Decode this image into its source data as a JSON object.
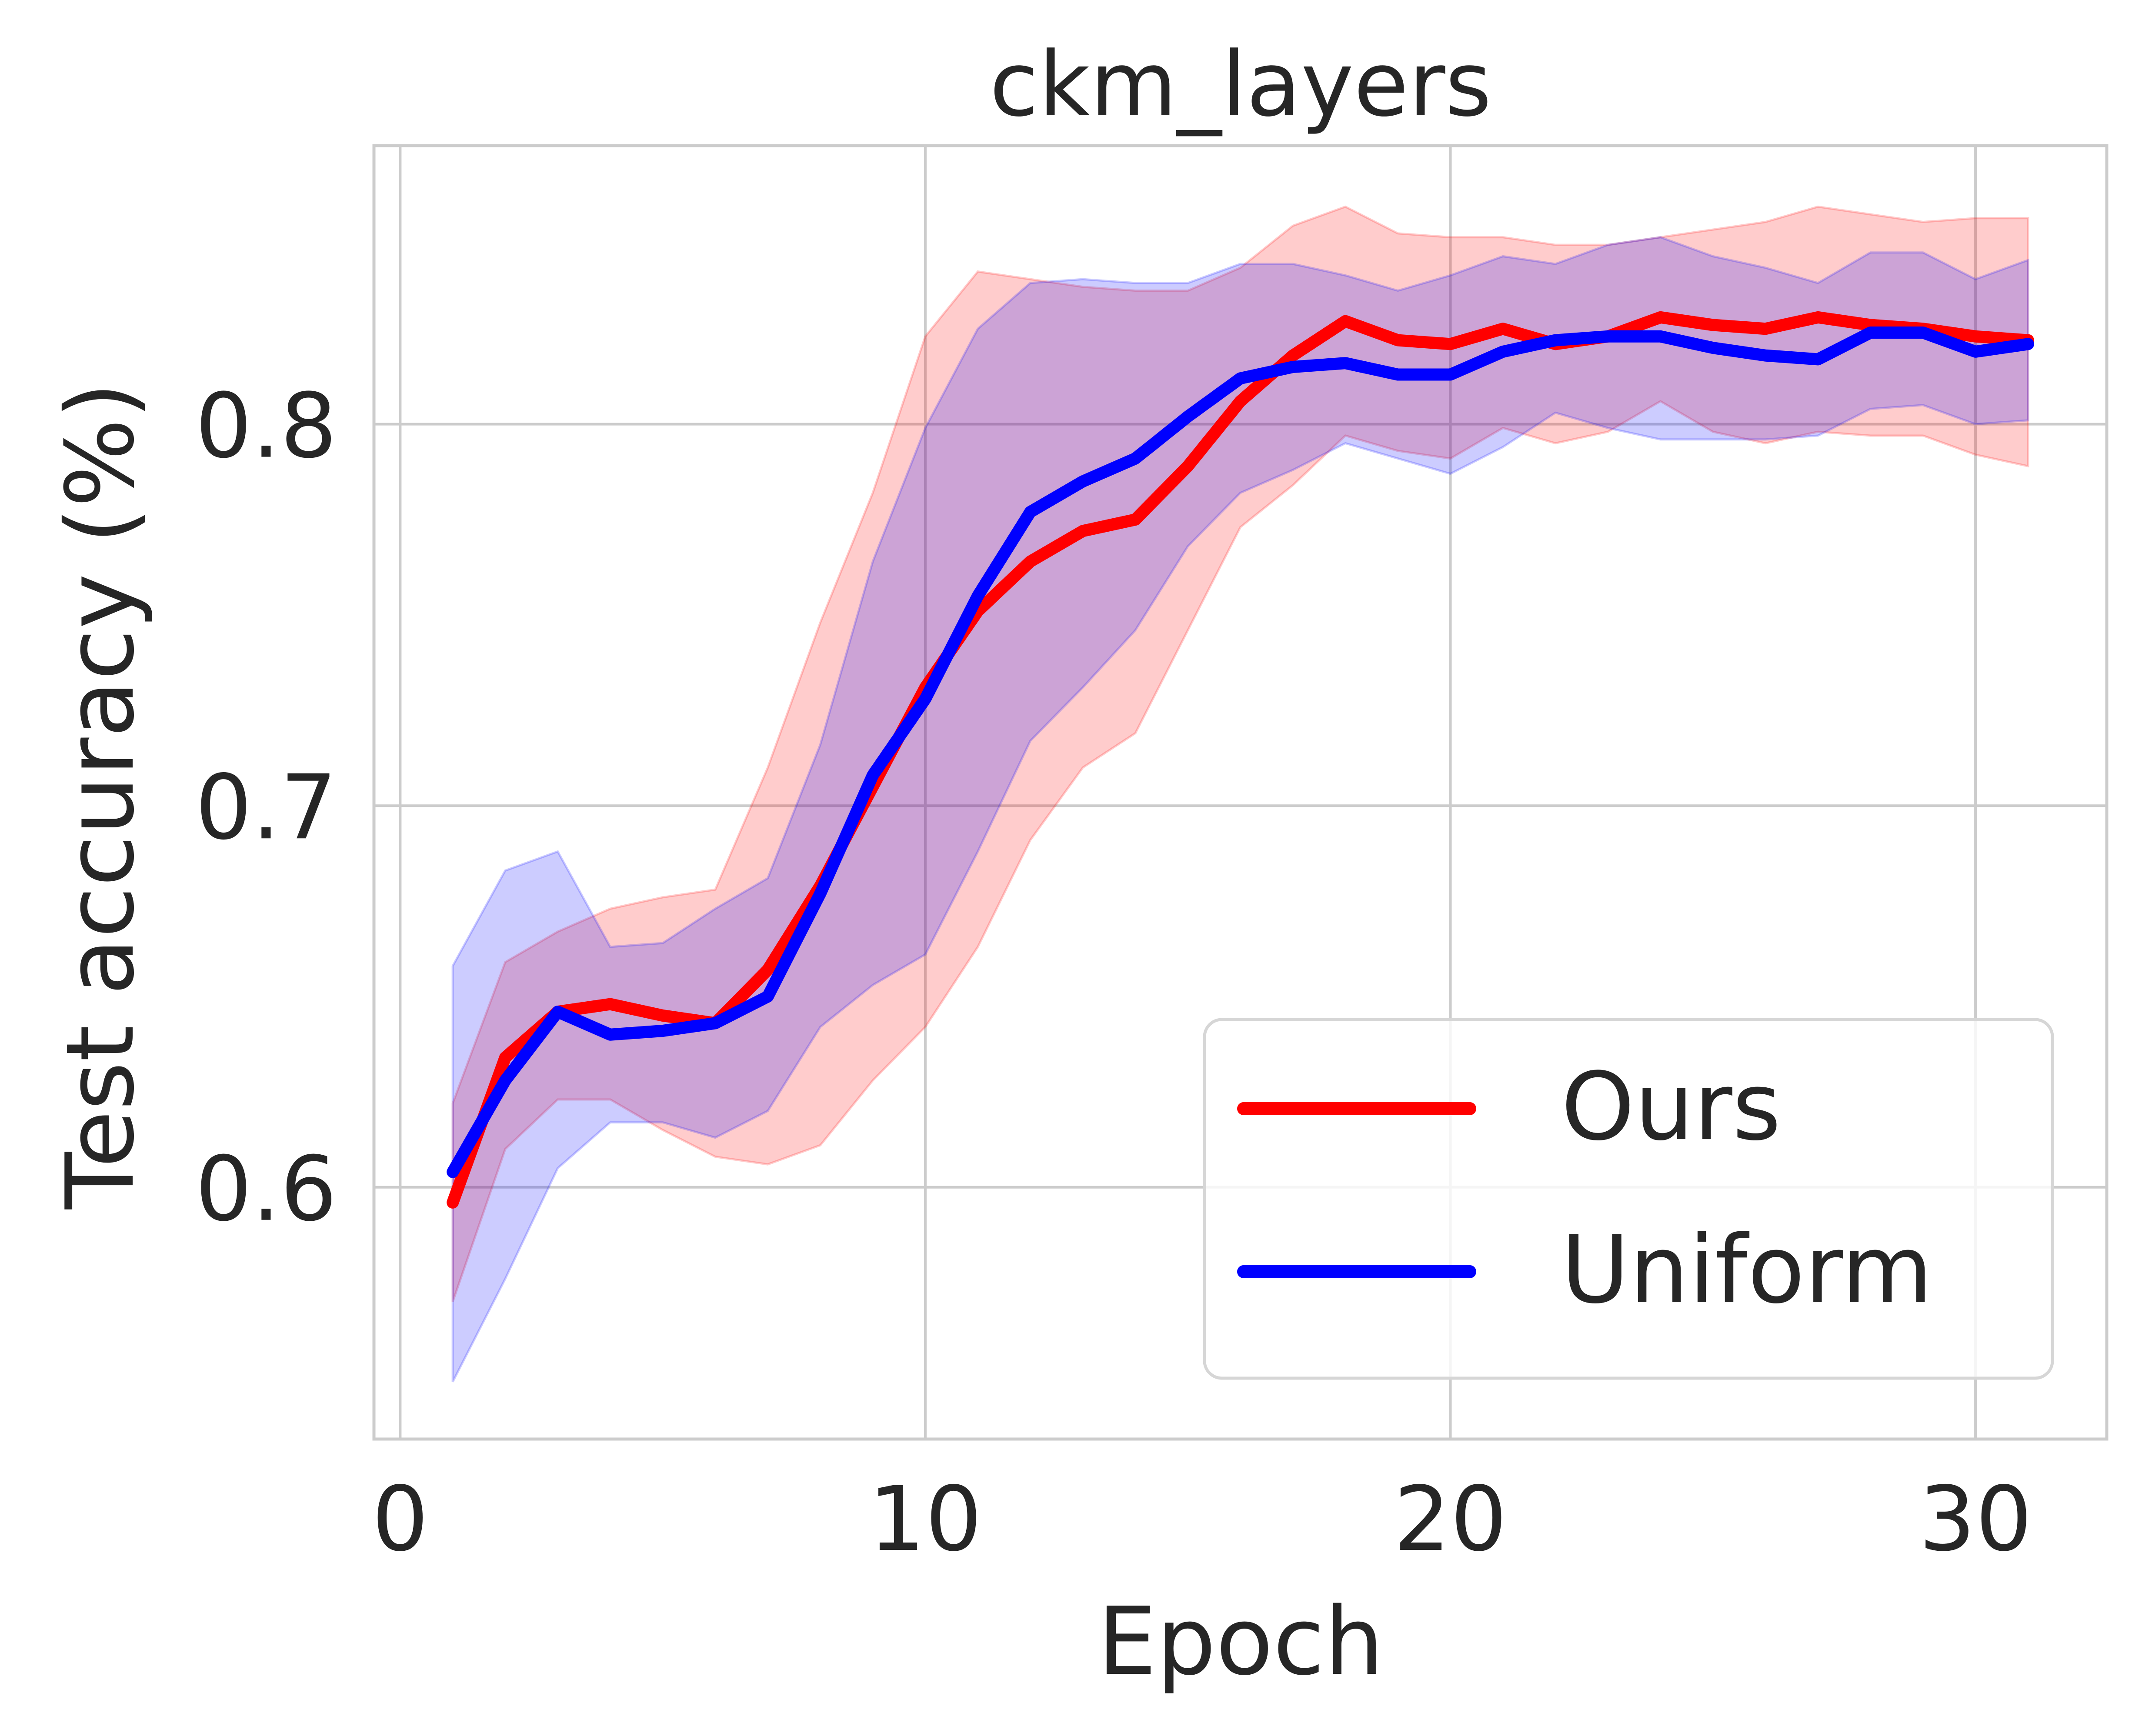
{
  "chart_data": {
    "type": "line",
    "title": "ckm_layers",
    "xlabel": "Epoch",
    "ylabel": "Test accuracy (%)",
    "xlim": [
      -0.5,
      32.5
    ],
    "ylim": [
      0.534,
      0.873
    ],
    "xticks": [
      0,
      10,
      20,
      30
    ],
    "xtick_labels": [
      "0",
      "10",
      "20",
      "30"
    ],
    "yticks": [
      0.6,
      0.7,
      0.8
    ],
    "ytick_labels": [
      "0.6",
      "0.7",
      "0.8"
    ],
    "grid": true,
    "legend_position": "lower right",
    "x": [
      1,
      2,
      3,
      4,
      5,
      6,
      7,
      8,
      9,
      10,
      11,
      12,
      13,
      14,
      15,
      16,
      17,
      18,
      19,
      20,
      21,
      22,
      23,
      24,
      25,
      26,
      27,
      28,
      29,
      30,
      31
    ],
    "series": [
      {
        "name": "Ours",
        "color": "#ff0000",
        "values": [
          0.596,
          0.634,
          0.646,
          0.648,
          0.645,
          0.643,
          0.657,
          0.679,
          0.705,
          0.731,
          0.751,
          0.764,
          0.772,
          0.775,
          0.789,
          0.806,
          0.818,
          0.827,
          0.822,
          0.821,
          0.825,
          0.821,
          0.823,
          0.828,
          0.826,
          0.825,
          0.828,
          0.826,
          0.825,
          0.823,
          0.822
        ],
        "lower": [
          0.57,
          0.61,
          0.623,
          0.623,
          0.615,
          0.608,
          0.606,
          0.611,
          0.628,
          0.642,
          0.663,
          0.691,
          0.71,
          0.719,
          0.746,
          0.773,
          0.784,
          0.797,
          0.793,
          0.791,
          0.799,
          0.795,
          0.798,
          0.806,
          0.798,
          0.795,
          0.798,
          0.797,
          0.797,
          0.792,
          0.789
        ],
        "upper": [
          0.622,
          0.659,
          0.667,
          0.673,
          0.676,
          0.678,
          0.71,
          0.748,
          0.782,
          0.823,
          0.84,
          0.838,
          0.836,
          0.835,
          0.835,
          0.841,
          0.852,
          0.857,
          0.85,
          0.849,
          0.849,
          0.847,
          0.847,
          0.849,
          0.851,
          0.853,
          0.857,
          0.855,
          0.853,
          0.854,
          0.854
        ]
      },
      {
        "name": "Uniform",
        "color": "#0000ff",
        "values": [
          0.604,
          0.628,
          0.646,
          0.64,
          0.641,
          0.643,
          0.65,
          0.677,
          0.708,
          0.728,
          0.755,
          0.777,
          0.785,
          0.791,
          0.802,
          0.812,
          0.815,
          0.816,
          0.813,
          0.813,
          0.819,
          0.822,
          0.823,
          0.823,
          0.82,
          0.818,
          0.817,
          0.824,
          0.824,
          0.819,
          0.821
        ],
        "lower": [
          0.549,
          0.576,
          0.605,
          0.617,
          0.617,
          0.613,
          0.62,
          0.642,
          0.653,
          0.661,
          0.688,
          0.717,
          0.731,
          0.746,
          0.768,
          0.782,
          0.788,
          0.795,
          0.791,
          0.787,
          0.794,
          0.803,
          0.799,
          0.796,
          0.796,
          0.796,
          0.797,
          0.804,
          0.805,
          0.8,
          0.801
        ],
        "upper": [
          0.658,
          0.683,
          0.688,
          0.663,
          0.664,
          0.673,
          0.681,
          0.716,
          0.764,
          0.799,
          0.825,
          0.837,
          0.838,
          0.837,
          0.837,
          0.842,
          0.842,
          0.839,
          0.835,
          0.839,
          0.844,
          0.842,
          0.847,
          0.849,
          0.844,
          0.841,
          0.837,
          0.845,
          0.845,
          0.838,
          0.843
        ]
      }
    ]
  }
}
